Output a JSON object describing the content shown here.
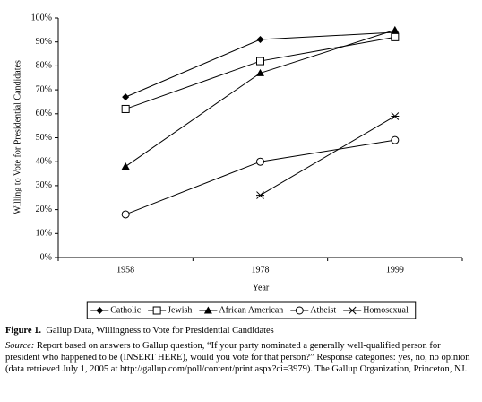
{
  "chart_data": {
    "type": "line",
    "y_label": "Willing to Vote for Presidential Candidates",
    "x_label": "Year",
    "categories": [
      "1958",
      "1978",
      "1999"
    ],
    "series": [
      {
        "name": "Catholic",
        "color": "#000000",
        "marker": "diamond",
        "values": [
          67,
          91,
          94
        ]
      },
      {
        "name": "Jewish",
        "color": "#000000",
        "marker": "square",
        "values": [
          62,
          82,
          92
        ]
      },
      {
        "name": "African American",
        "color": "#000000",
        "marker": "triangle",
        "values": [
          38,
          77,
          95
        ]
      },
      {
        "name": "Atheist",
        "color": "#000000",
        "marker": "circle",
        "values": [
          18,
          40,
          49
        ]
      },
      {
        "name": "Homosexual",
        "color": "#000000",
        "marker": "asterisk",
        "values": [
          null,
          26,
          59
        ]
      }
    ],
    "ylim": [
      0,
      100
    ],
    "yticks": [
      {
        "value": 0,
        "label": "0%"
      },
      {
        "value": 10,
        "label": "10%"
      },
      {
        "value": 20,
        "label": "20%"
      },
      {
        "value": 30,
        "label": "30%"
      },
      {
        "value": 40,
        "label": "40%"
      },
      {
        "value": 50,
        "label": "50%"
      },
      {
        "value": 60,
        "label": "60%"
      },
      {
        "value": 70,
        "label": "70%"
      },
      {
        "value": 80,
        "label": "80%"
      },
      {
        "value": 90,
        "label": "90%"
      },
      {
        "value": 100,
        "label": "100%"
      }
    ],
    "legend": "bottom"
  },
  "caption": {
    "label": "Figure 1.",
    "text": "Gallup Data, Willingness to Vote for Presidential Candidates"
  },
  "source": {
    "label": "Source:",
    "text": "Report based on answers to Gallup question, “If your party nominated a generally well-qualified person for president who happened to be (INSERT HERE), would you vote for that person?” Response categories: yes, no, no opinion (data retrieved July 1, 2005 at http://gallup.com/poll/content/print.aspx?ci=3979). The Gallup Organization, Princeton, NJ."
  }
}
